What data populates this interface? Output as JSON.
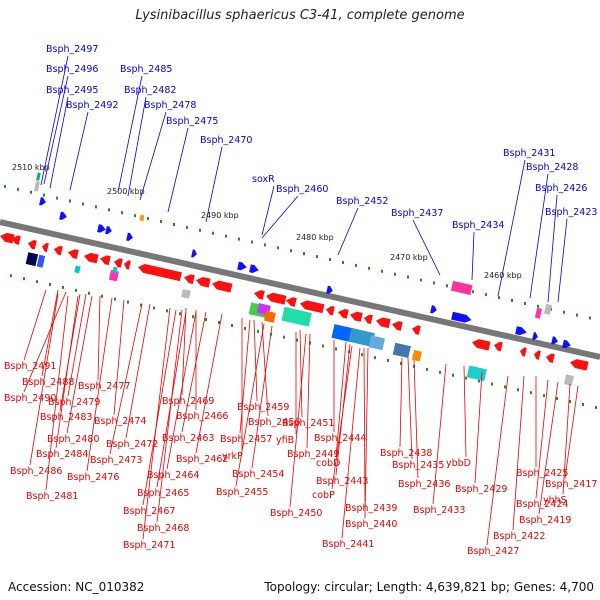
{
  "title": "Lysinibacillus sphaericus C3-41, complete genome",
  "footer": {
    "accession": "Accession: NC_010382",
    "topology": "Topology: circular; Length: 4,639,821 bp; Genes: 4,700"
  },
  "colors": {
    "forward_label": "#0000ee",
    "reverse_label": "#ee0000",
    "forward_gene": "#1010ff",
    "reverse_gene": "#ff1010",
    "backbone": "#777777"
  },
  "ticks": [
    "2510 kbp",
    "2500 kbp",
    "2490 kbp",
    "2480 kbp",
    "2470 kbp",
    "2460 kbp"
  ],
  "forward_labels": [
    "Bsph_2497",
    "Bsph_2496",
    "Bsph_2495",
    "Bsph_2492",
    "Bsph_2485",
    "Bsph_2482",
    "Bsph_2478",
    "Bsph_2475",
    "Bsph_2470",
    "soxR",
    "Bsph_2460",
    "Bsph_2452",
    "Bsph_2437",
    "Bsph_2434",
    "Bsph_2431",
    "Bsph_2428",
    "Bsph_2426",
    "Bsph_2423"
  ],
  "reverse_labels": [
    "Bsph_2491",
    "Bsph_2488",
    "Bsph_2490",
    "Bsph_2477",
    "Bsph_2479",
    "Bsph_2483",
    "Bsph_2474",
    "Bsph_2480",
    "Bsph_2484",
    "Bsph_2472",
    "Bsph_2486",
    "Bsph_2473",
    "Bsph_2476",
    "Bsph_2481",
    "Bsph_2469",
    "Bsph_2466",
    "Bsph_2463",
    "Bsph_2462",
    "Bsph_2464",
    "Bsph_2465",
    "Bsph_2467",
    "Bsph_2468",
    "Bsph_2471",
    "Bsph_2459",
    "Bsph_2456",
    "Bsph_2457",
    "yrkP",
    "Bsph_2454",
    "Bsph_2455",
    "Bsph_2451",
    "yfiB",
    "Bsph_2449",
    "Bsph_2450",
    "Bsph_2444",
    "cobD",
    "Bsph_2443",
    "cobP",
    "Bsph_2440",
    "Bsph_2439",
    "Bsph_2441",
    "Bsph_2438",
    "Bsph_2435",
    "Bsph_2436",
    "ybbD",
    "Bsph_2433",
    "Bsph_2429",
    "Bsph_2425",
    "Bsph_2424",
    "Bsph_2422",
    "Bsph_2427",
    "Bsph_2417",
    "yhhS",
    "Bsph_2419"
  ]
}
